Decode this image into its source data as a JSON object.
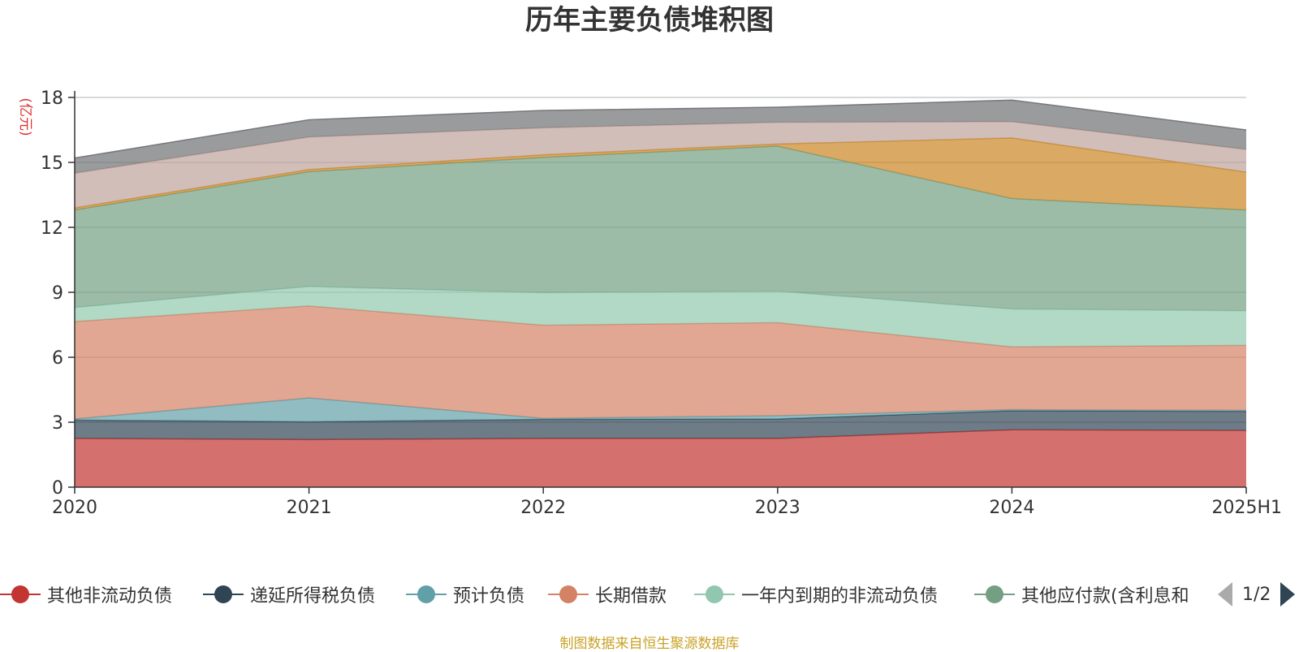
{
  "chart_data": {
    "type": "area",
    "stacked": true,
    "title": "历年主要负债堆积图",
    "ylabel": "(亿元)",
    "xlabel": "",
    "categories": [
      "2020",
      "2021",
      "2022",
      "2023",
      "2024",
      "2025H1"
    ],
    "ylim": [
      0,
      18
    ],
    "yticks": [
      0,
      3,
      6,
      9,
      12,
      15,
      18
    ],
    "grid": true,
    "series": [
      {
        "name": "其他非流动负债",
        "color": "#c23531",
        "values": [
          2.25,
          2.2,
          2.25,
          2.25,
          2.65,
          2.62
        ]
      },
      {
        "name": "递延所得税负债",
        "color": "#2f4554",
        "values": [
          0.85,
          0.82,
          0.88,
          0.9,
          0.88,
          0.88
        ]
      },
      {
        "name": "预计负债",
        "color": "#61a0a8",
        "values": [
          0.05,
          1.1,
          0.05,
          0.15,
          0.05,
          0.05
        ]
      },
      {
        "name": "长期借款",
        "color": "#d48265",
        "values": [
          4.5,
          4.25,
          4.3,
          4.3,
          2.9,
          3.0
        ]
      },
      {
        "name": "一年内到期的非流动负债",
        "color": "#91c7ae",
        "values": [
          0.65,
          0.9,
          1.5,
          1.45,
          1.75,
          1.6
        ]
      },
      {
        "name": "其他应付款(含利息和",
        "color": "#749f83",
        "values": [
          4.5,
          5.3,
          6.25,
          6.7,
          5.1,
          4.65
        ]
      },
      {
        "name": "",
        "color": "#ca8622",
        "values": [
          0.1,
          0.1,
          0.12,
          0.1,
          2.8,
          1.75
        ]
      },
      {
        "name": "",
        "color": "#bda29a",
        "values": [
          1.6,
          1.5,
          1.25,
          1.0,
          0.75,
          1.05
        ]
      },
      {
        "name": "",
        "color": "#6e7074",
        "values": [
          0.7,
          0.8,
          0.8,
          0.7,
          1.0,
          0.9
        ]
      }
    ],
    "legend_position": "bottom"
  },
  "legend": {
    "page_indicator": "1/2",
    "prev_icon": "triangle-left-icon",
    "next_icon": "triangle-right-icon"
  },
  "source_note": "制图数据来自恒生聚源数据库"
}
